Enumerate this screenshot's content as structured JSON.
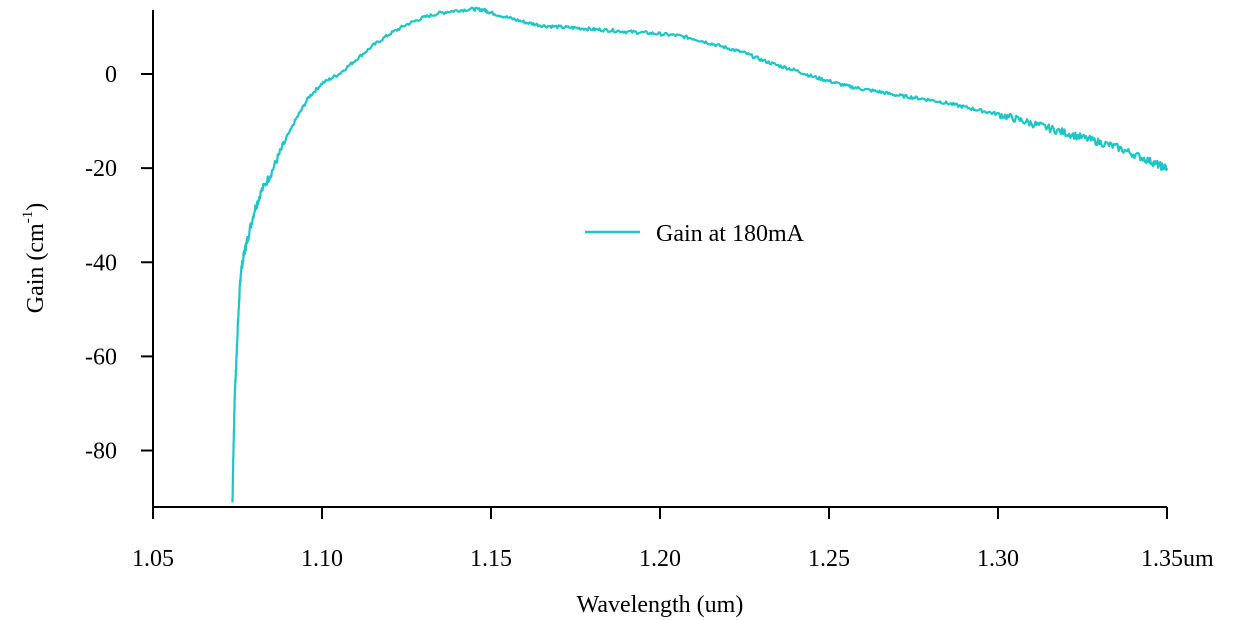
{
  "chart_data": {
    "type": "line",
    "title": "",
    "xlabel": "Wavelength (um)",
    "ylabel": "Gain (cm",
    "ylabel_sup": "-1",
    "ylabel_close": ")",
    "xlim": [
      1.05,
      1.35
    ],
    "ylim": [
      -92,
      14
    ],
    "grid": false,
    "legend_position": "center",
    "x_ticks": [
      1.05,
      1.1,
      1.15,
      1.2,
      1.25,
      1.3,
      1.35
    ],
    "x_tick_labels": [
      "1.05",
      "1.10",
      "1.15",
      "1.20",
      "1.25",
      "1.30",
      "1.35um"
    ],
    "y_ticks": [
      0,
      -20,
      -40,
      -60,
      -80
    ],
    "y_tick_labels": [
      "0",
      "-20",
      "-40",
      "-60",
      "-80"
    ],
    "series": [
      {
        "name": "Gain at 180mA",
        "color": "#1cc6c6",
        "x": [
          1.0735,
          1.0738,
          1.0742,
          1.0746,
          1.075,
          1.0755,
          1.076,
          1.077,
          1.078,
          1.08,
          1.082,
          1.085,
          1.088,
          1.092,
          1.096,
          1.1,
          1.105,
          1.11,
          1.115,
          1.12,
          1.125,
          1.13,
          1.135,
          1.14,
          1.145,
          1.148,
          1.15,
          1.155,
          1.16,
          1.165,
          1.17,
          1.175,
          1.18,
          1.185,
          1.19,
          1.195,
          1.2,
          1.205,
          1.21,
          1.215,
          1.22,
          1.225,
          1.23,
          1.235,
          1.24,
          1.245,
          1.25,
          1.255,
          1.26,
          1.265,
          1.27,
          1.275,
          1.28,
          1.285,
          1.29,
          1.295,
          1.3,
          1.305,
          1.31,
          1.315,
          1.32,
          1.325,
          1.33,
          1.335,
          1.34,
          1.345,
          1.348,
          1.35
        ],
        "y": [
          -91,
          -80,
          -68,
          -62,
          -55,
          -48,
          -42,
          -38,
          -35,
          -29,
          -25,
          -21,
          -16,
          -10,
          -5,
          -2,
          0,
          3,
          6,
          8.5,
          10.5,
          12,
          13,
          13.5,
          13.8,
          13.6,
          13,
          12,
          11,
          10.3,
          10,
          9.8,
          9.5,
          9.3,
          9,
          8.8,
          8.5,
          8.2,
          7.5,
          6.5,
          5.5,
          4.5,
          3,
          1.8,
          0.8,
          -0.5,
          -1.5,
          -2.5,
          -3.2,
          -3.8,
          -4.5,
          -5,
          -5.5,
          -6.2,
          -7,
          -7.8,
          -8.5,
          -9.5,
          -10.5,
          -11.5,
          -12.5,
          -13.5,
          -14.5,
          -15.5,
          -17,
          -18.5,
          -19.5,
          -20
        ]
      }
    ]
  }
}
